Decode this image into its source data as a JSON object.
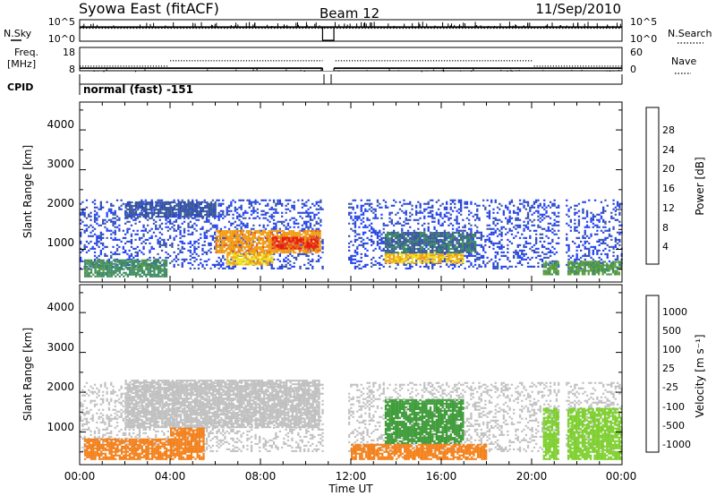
{
  "header": {
    "title": "Syowa East (fitACF)",
    "beam": "Beam 12",
    "date": "11/Sep/2010"
  },
  "left_labels": {
    "nsky": "N.Sky",
    "freq_line1": "Freq.",
    "freq_line2": "[MHz]",
    "cpid": "CPID",
    "cpid_value": "normal (fast) -151"
  },
  "right_labels": {
    "nsearch": "N.Search",
    "nave": "Nave"
  },
  "colors": {
    "power_scale": [
      "#1f3fff",
      "#2846c8",
      "#3c5a9c",
      "#3d8a63",
      "#5a9e3c",
      "#f2e318",
      "#f29f18",
      "#e8601a",
      "#e61c14"
    ],
    "velocity_scale": [
      "#e8130f",
      "#f04f16",
      "#f47f17",
      "#f4b93a",
      "#c0c0c0",
      "#c0c0c0",
      "#7ccf2b",
      "#3f9d3a",
      "#3a5fb7",
      "#243ed6"
    ]
  },
  "chart_data": [
    {
      "id": "noise",
      "type": "line",
      "ylabel_left": "N.Sky",
      "ylabel_right": "N.Search",
      "yticks_left": [
        "10^5",
        "10^0"
      ],
      "yticks_right": [
        "10^5",
        "10^0"
      ],
      "gap_hours": [
        10.75,
        11.25
      ],
      "series": [
        {
          "name": "N.Sky",
          "x": [
            0,
            4,
            8,
            10.75,
            11.25,
            16,
            20,
            24
          ],
          "y": [
            3.6,
            3.6,
            3.6,
            3.6,
            3.6,
            3.6,
            3.6,
            3.6
          ]
        },
        {
          "name": "N.Search",
          "x": [
            0,
            4,
            8,
            10.75,
            11.25,
            16,
            20,
            24
          ],
          "y": [
            3.3,
            3.3,
            3.3,
            3.3,
            3.3,
            3.3,
            3.3,
            3.3
          ]
        }
      ]
    },
    {
      "id": "freq",
      "type": "line",
      "ylabel_left": "Freq. [MHz]",
      "ylabel_right": "Nave",
      "yticks_left": [
        "18",
        "8"
      ],
      "yticks_right": [
        "60",
        "0"
      ],
      "series": [
        {
          "name": "Freq.",
          "x": [
            0,
            24
          ],
          "y": [
            9.1,
            9.1
          ]
        },
        {
          "name": "Nave",
          "x": [
            0,
            3.9,
            4.0,
            20.0,
            20.1,
            24
          ],
          "y": [
            12,
            12,
            26,
            26,
            12,
            12
          ]
        }
      ]
    },
    {
      "id": "power",
      "type": "heatmap",
      "ylabel": "Slant Range [km]",
      "yticks": [
        "1000",
        "2000",
        "3000",
        "4000"
      ],
      "ylim": [
        180,
        4700
      ],
      "xlim": [
        0,
        24
      ],
      "colorbar_label": "Power [dB]",
      "colorbar_ticks": [
        "4",
        "8",
        "12",
        "16",
        "20",
        "24",
        "28"
      ],
      "clim": [
        0,
        30
      ],
      "data_gaps": [
        [
          10.75,
          11.85
        ],
        [
          21.2,
          21.5
        ]
      ],
      "features": [
        {
          "t": [
            0.0,
            24.0
          ],
          "range": [
            500,
            2250
          ],
          "value": 4
        },
        {
          "t": [
            0.2,
            3.8
          ],
          "range": [
            300,
            750
          ],
          "value": 12
        },
        {
          "t": [
            2.0,
            6.0
          ],
          "range": [
            1800,
            2200
          ],
          "value": 8
        },
        {
          "t": [
            6.0,
            10.6
          ],
          "range": [
            900,
            1450
          ],
          "value": 22
        },
        {
          "t": [
            8.5,
            10.5
          ],
          "range": [
            1000,
            1300
          ],
          "value": 27
        },
        {
          "t": [
            6.5,
            8.5
          ],
          "range": [
            600,
            900
          ],
          "value": 20
        },
        {
          "t": [
            13.5,
            17.0
          ],
          "range": [
            650,
            900
          ],
          "value": 20
        },
        {
          "t": [
            13.5,
            17.5
          ],
          "range": [
            900,
            1400
          ],
          "value": 10
        },
        {
          "t": [
            20.5,
            24.0
          ],
          "range": [
            350,
            700
          ],
          "value": 14
        }
      ]
    },
    {
      "id": "velocity",
      "type": "heatmap",
      "ylabel": "Slant Range [km]",
      "yticks": [
        "1000",
        "2000",
        "3000",
        "4000"
      ],
      "ylim": [
        180,
        4700
      ],
      "xlim": [
        0,
        24
      ],
      "xticks": [
        "00:00",
        "04:00",
        "08:00",
        "12:00",
        "16:00",
        "20:00",
        "00:00"
      ],
      "xlabel": "Time UT",
      "colorbar_label": "Velocity [m s⁻¹]",
      "colorbar_ticks": [
        "-1000",
        "-500",
        "-100",
        "-25",
        "25",
        "100",
        "500",
        "1000"
      ],
      "clim": [
        -1200,
        1200
      ],
      "data_gaps": [
        [
          10.75,
          11.85
        ],
        [
          21.2,
          21.5
        ]
      ],
      "features": [
        {
          "t": [
            0.0,
            24.0
          ],
          "range": [
            500,
            2250
          ],
          "value": 0
        },
        {
          "t": [
            2.0,
            10.6
          ],
          "range": [
            1100,
            2300
          ],
          "value": 10
        },
        {
          "t": [
            0.2,
            4.0
          ],
          "range": [
            300,
            800
          ],
          "value": -200
        },
        {
          "t": [
            4.0,
            5.5
          ],
          "range": [
            300,
            1100
          ],
          "value": -400
        },
        {
          "t": [
            13.5,
            17.0
          ],
          "range": [
            700,
            1800
          ],
          "value": 150
        },
        {
          "t": [
            12.0,
            18.0
          ],
          "range": [
            300,
            700
          ],
          "value": -150
        },
        {
          "t": [
            20.5,
            24.0
          ],
          "range": [
            300,
            1600
          ],
          "value": 80
        }
      ]
    }
  ]
}
